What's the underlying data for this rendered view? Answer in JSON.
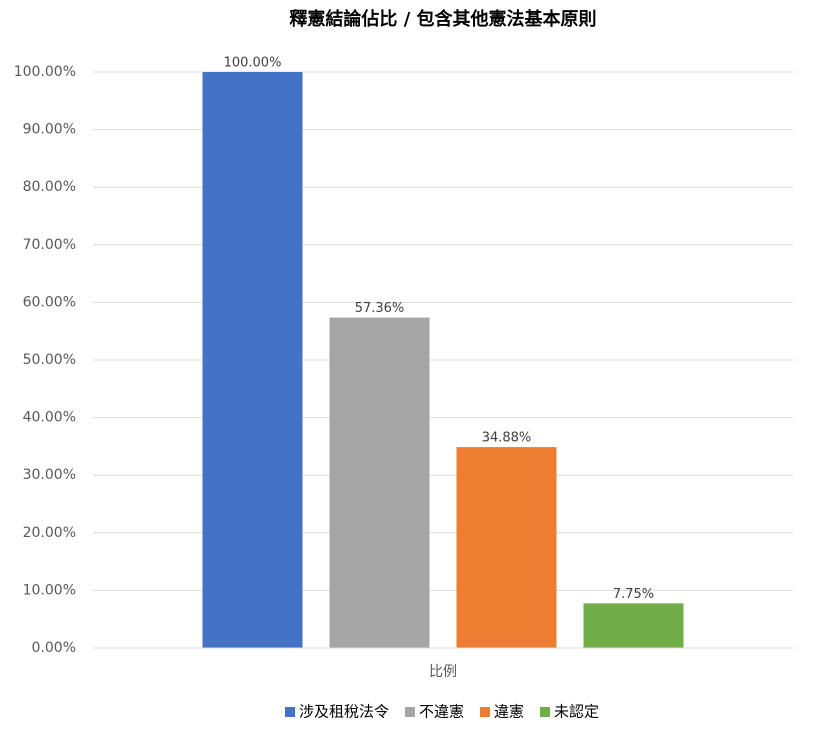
{
  "chart_data": {
    "type": "bar",
    "title": "釋憲結論佔比 / 包含其他憲法基本原則",
    "categories": [
      "比例"
    ],
    "series": [
      {
        "name": "涉及租稅法令",
        "color": "#4472c4",
        "values": [
          100
        ],
        "value_labels": [
          "100.00%"
        ]
      },
      {
        "name": "不違憲",
        "color": "#a5a5a5",
        "values": [
          57.36
        ],
        "value_labels": [
          "57.36%"
        ]
      },
      {
        "name": "違憲",
        "color": "#ed7d31",
        "values": [
          34.88
        ],
        "value_labels": [
          "34.88%"
        ]
      },
      {
        "name": "未認定",
        "color": "#70ad47",
        "values": [
          7.75
        ],
        "value_labels": [
          "7.75%"
        ]
      }
    ],
    "ylim": [
      0,
      100
    ],
    "yticks": [
      {
        "value": 0,
        "label": "0.00%"
      },
      {
        "value": 10,
        "label": "10.00%"
      },
      {
        "value": 20,
        "label": "20.00%"
      },
      {
        "value": 30,
        "label": "30.00%"
      },
      {
        "value": 40,
        "label": "40.00%"
      },
      {
        "value": 50,
        "label": "50.00%"
      },
      {
        "value": 60,
        "label": "60.00%"
      },
      {
        "value": 70,
        "label": "70.00%"
      },
      {
        "value": 80,
        "label": "80.00%"
      },
      {
        "value": 90,
        "label": "90.00%"
      },
      {
        "value": 100,
        "label": "100.00%"
      }
    ],
    "grid": true,
    "legend": "bottom"
  }
}
